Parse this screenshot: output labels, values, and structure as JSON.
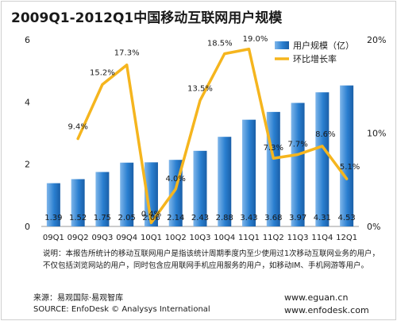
{
  "title": "2009Q1-2012Q1中国移动互联网用户规模",
  "note": "说明：本报告所统计的移动互联网用户是指该统计周期季度内至少使用过1次移动互联网业务的用户，不仅包括浏览网站的用户，同时包含应用联网手机应用服务的用户，如移动IM、手机网游等用户。",
  "source_cn": "来源：易观国际·易观智库",
  "source_en": "SOURCE: EnfoDesk © Analysys International",
  "url1": "www.eguan.cn",
  "url2": "www.enfodesk.com",
  "colors": {
    "bar": "#1f6fbf",
    "bar_light": "#7fb6ea",
    "line": "#f5b51e"
  },
  "chart_data": {
    "type": "bar+line",
    "categories": [
      "09Q1",
      "09Q2",
      "09Q3",
      "09Q4",
      "10Q1",
      "10Q2",
      "10Q3",
      "10Q4",
      "11Q1",
      "11Q2",
      "11Q3",
      "11Q4",
      "12Q1"
    ],
    "series": [
      {
        "name": "用户规模（亿）",
        "type": "bar",
        "axis": "left",
        "values": [
          1.39,
          1.52,
          1.75,
          2.05,
          2.06,
          2.14,
          2.43,
          2.88,
          3.43,
          3.68,
          3.97,
          4.31,
          4.53
        ],
        "labels": [
          "1.39",
          "1.52",
          "1.75",
          "2.05",
          "2.06",
          "2.14",
          "2.43",
          "2.88",
          "3.43",
          "3.68",
          "3.97",
          "4.31",
          "4.53"
        ]
      },
      {
        "name": "环比增长率",
        "type": "line",
        "axis": "right",
        "values": [
          null,
          9.4,
          15.2,
          17.3,
          0.4,
          4.0,
          13.5,
          18.5,
          19.0,
          7.3,
          7.7,
          8.6,
          5.1
        ],
        "labels": [
          "",
          "9.4%",
          "15.2%",
          "17.3%",
          "0.4%",
          "4.0%",
          "13.5%",
          "18.5%",
          "19.0%",
          "7.3%",
          "7.7%",
          "8.6%",
          "5.1%"
        ]
      }
    ],
    "y_left": {
      "ylim": [
        0,
        6
      ],
      "ticks": [
        "0",
        "2",
        "4",
        "6"
      ]
    },
    "y_right": {
      "ylim": [
        0,
        20
      ],
      "ticks": [
        "0%",
        "10%",
        "20%"
      ]
    },
    "legend_position": "top-right",
    "grid": false
  }
}
